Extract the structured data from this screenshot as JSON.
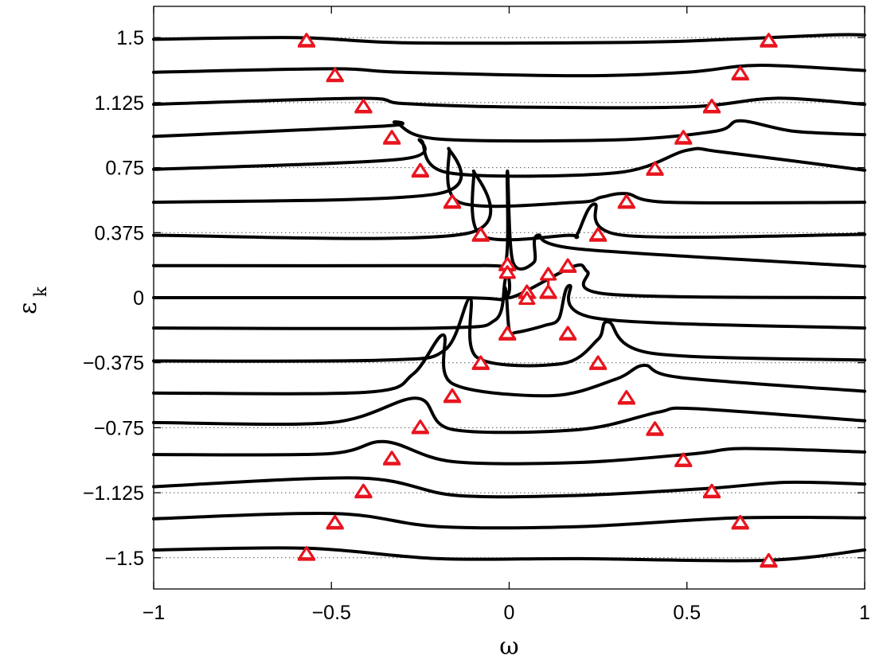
{
  "chart_data": {
    "type": "line",
    "title": "",
    "xlabel": "ω",
    "ylabel": "ε",
    "ylabel_subscript": "k",
    "xlim": [
      -1,
      1
    ],
    "ylim": [
      -1.68,
      1.68
    ],
    "xticks": [
      -1,
      -0.5,
      0,
      0.5,
      1
    ],
    "xtick_labels": [
      "−1",
      "−0.5",
      "0",
      "0.5",
      "1"
    ],
    "yticks": [
      -1.5,
      -1.125,
      -0.75,
      -0.375,
      0,
      0.375,
      0.75,
      1.125,
      1.5
    ],
    "ytick_labels": [
      "−1.5",
      "−1.125",
      "−0.75",
      "−0.375",
      "0",
      "0.375",
      "0.75",
      "1.125",
      "1.5"
    ],
    "dotted_gridlines_at_ytick": true,
    "line_color": "#000000",
    "marker_color": "#e8141e",
    "marker_style": "double-triangle-arrow",
    "series": [
      {
        "eps": -1.5,
        "xs": [
          -1,
          -0.57,
          -0.2,
          0.2,
          0.72,
          1
        ],
        "ys": [
          -1.455,
          -1.445,
          -1.505,
          -1.505,
          -1.515,
          -1.455
        ]
      },
      {
        "eps": -1.31,
        "xs": [
          -1,
          -0.49,
          -0.2,
          0.2,
          0.64,
          1
        ],
        "ys": [
          -1.275,
          -1.245,
          -1.32,
          -1.32,
          -1.27,
          -1.27
        ]
      },
      {
        "eps": -1.125,
        "xs": [
          -1,
          -0.42,
          -0.15,
          0.2,
          0.56,
          0.78,
          1
        ],
        "ys": [
          -1.09,
          -1.04,
          -1.14,
          -1.14,
          -1.1,
          -1.065,
          -1.075
        ]
      },
      {
        "eps": -0.94,
        "xs": [
          -1,
          -0.51,
          -0.35,
          -0.16,
          0.2,
          0.52,
          0.66,
          1
        ],
        "ys": [
          -0.905,
          -0.9,
          -0.83,
          -0.945,
          -0.95,
          -0.9,
          -0.87,
          -0.89
        ]
      },
      {
        "eps": -0.75,
        "xs": [
          -1,
          -0.5,
          -0.26,
          -0.16,
          0.2,
          0.42,
          0.52,
          1
        ],
        "ys": [
          -0.72,
          -0.72,
          -0.58,
          -0.76,
          -0.76,
          -0.66,
          -0.64,
          -0.71
        ]
      },
      {
        "eps": -0.56,
        "xs": [
          -1,
          -0.4,
          -0.27,
          -0.185,
          -0.16,
          0.12,
          0.3,
          0.38,
          0.48,
          1
        ],
        "ys": [
          -0.55,
          -0.545,
          -0.44,
          -0.215,
          -0.495,
          -0.565,
          -0.47,
          -0.39,
          -0.46,
          -0.54
        ]
      },
      {
        "eps": -0.375,
        "xs": [
          -1,
          -0.35,
          -0.18,
          -0.11,
          -0.09,
          0.15,
          0.25,
          0.28,
          0.4,
          1
        ],
        "ys": [
          -0.365,
          -0.36,
          -0.3,
          -0.005,
          -0.345,
          -0.38,
          -0.24,
          -0.14,
          -0.32,
          -0.36
        ]
      },
      {
        "eps": -0.19,
        "xs": [
          -1,
          -0.2,
          -0.04,
          -0.012,
          0.0,
          0.02,
          0.1,
          0.14,
          0.17,
          0.25,
          1
        ],
        "ys": [
          -0.175,
          -0.175,
          -0.13,
          0.06,
          -0.185,
          -0.2,
          -0.16,
          -0.12,
          0.07,
          -0.12,
          -0.175
        ]
      },
      {
        "eps": 0.0,
        "xs": [
          -1,
          -0.15,
          -0.01,
          -0.005,
          0.0,
          0.18,
          0.22,
          0.28,
          1
        ],
        "ys": [
          0.0,
          0.0,
          0.0,
          0.165,
          0.0,
          0.18,
          0.15,
          0.02,
          0.0
        ]
      },
      {
        "eps": 0.19,
        "xs": [
          -1,
          -0.08,
          -0.01,
          -0.005,
          0.01,
          0.07,
          0.08,
          0.2,
          1
        ],
        "ys": [
          0.185,
          0.185,
          0.2,
          0.73,
          0.21,
          0.205,
          0.36,
          0.28,
          0.18
        ]
      },
      {
        "eps": 0.375,
        "xs": [
          -1,
          -0.12,
          -0.1,
          -0.08,
          0.17,
          0.19,
          0.24,
          0.32,
          1
        ],
        "ys": [
          0.36,
          0.37,
          0.73,
          0.36,
          0.36,
          0.36,
          0.54,
          0.36,
          0.365
        ]
      },
      {
        "eps": 0.56,
        "xs": [
          -1,
          -0.2,
          -0.17,
          -0.14,
          0.19,
          0.26,
          0.33,
          0.45,
          1
        ],
        "ys": [
          0.55,
          0.6,
          0.86,
          0.55,
          0.55,
          0.58,
          0.6,
          0.55,
          0.55
        ]
      },
      {
        "eps": 0.75,
        "xs": [
          -1,
          -0.3,
          -0.25,
          -0.17,
          0.3,
          0.5,
          0.6,
          1
        ],
        "ys": [
          0.74,
          0.8,
          0.91,
          0.72,
          0.72,
          0.85,
          0.84,
          0.735
        ]
      },
      {
        "eps": 0.94,
        "xs": [
          -1,
          -0.35,
          -0.32,
          -0.2,
          0.3,
          0.58,
          0.65,
          0.8,
          1
        ],
        "ys": [
          0.93,
          0.99,
          1.01,
          0.915,
          0.91,
          0.96,
          1.02,
          0.96,
          0.94
        ]
      },
      {
        "eps": 1.125,
        "xs": [
          -1,
          -0.42,
          -0.3,
          0.0,
          0.5,
          0.75,
          1
        ],
        "ys": [
          1.115,
          1.15,
          1.12,
          1.1,
          1.1,
          1.15,
          1.115
        ]
      },
      {
        "eps": 1.31,
        "xs": [
          -1,
          -0.5,
          -0.3,
          0.2,
          0.5,
          0.7,
          1
        ],
        "ys": [
          1.3,
          1.32,
          1.3,
          1.28,
          1.3,
          1.34,
          1.31
        ]
      },
      {
        "eps": 1.5,
        "xs": [
          -1,
          -0.6,
          -0.3,
          0.2,
          0.5,
          0.9,
          1
        ],
        "ys": [
          1.49,
          1.5,
          1.47,
          1.47,
          1.48,
          1.515,
          1.515
        ]
      }
    ],
    "markers": [
      {
        "x": -0.57,
        "y": -1.51,
        "len": 0.07
      },
      {
        "x": 0.73,
        "y": -1.55,
        "len": 0.07
      },
      {
        "x": -0.49,
        "y": -1.33,
        "len": 0.07
      },
      {
        "x": 0.65,
        "y": -1.33,
        "len": 0.07
      },
      {
        "x": -0.41,
        "y": -1.15,
        "len": 0.07
      },
      {
        "x": 0.57,
        "y": -1.15,
        "len": 0.07
      },
      {
        "x": -0.33,
        "y": -0.96,
        "len": 0.07
      },
      {
        "x": 0.49,
        "y": -0.97,
        "len": 0.07
      },
      {
        "x": -0.25,
        "y": -0.78,
        "len": 0.07
      },
      {
        "x": 0.41,
        "y": -0.79,
        "len": 0.07
      },
      {
        "x": -0.16,
        "y": -0.6,
        "len": 0.07
      },
      {
        "x": 0.33,
        "y": -0.61,
        "len": 0.07
      },
      {
        "x": -0.08,
        "y": -0.41,
        "len": 0.07
      },
      {
        "x": 0.25,
        "y": -0.41,
        "len": 0.07
      },
      {
        "x": -0.005,
        "y": -0.24,
        "len": 0.07
      },
      {
        "x": 0.165,
        "y": -0.24,
        "len": 0.07
      },
      {
        "x": 0.05,
        "y": 0.0,
        "len": 0.03
      },
      {
        "x": 0.11,
        "y": 0.0,
        "len": 0.17
      },
      {
        "x": -0.005,
        "y": 0.16,
        "len": 0.02
      },
      {
        "x": 0.165,
        "y": 0.15,
        "len": 0.07
      },
      {
        "x": -0.08,
        "y": 0.33,
        "len": 0.07
      },
      {
        "x": 0.25,
        "y": 0.33,
        "len": 0.07
      },
      {
        "x": -0.16,
        "y": 0.52,
        "len": 0.07
      },
      {
        "x": 0.33,
        "y": 0.52,
        "len": 0.07
      },
      {
        "x": -0.25,
        "y": 0.7,
        "len": 0.07
      },
      {
        "x": 0.41,
        "y": 0.71,
        "len": 0.07
      },
      {
        "x": -0.33,
        "y": 0.89,
        "len": 0.07
      },
      {
        "x": 0.49,
        "y": 0.89,
        "len": 0.07
      },
      {
        "x": -0.41,
        "y": 1.07,
        "len": 0.07
      },
      {
        "x": 0.57,
        "y": 1.07,
        "len": 0.07
      },
      {
        "x": -0.49,
        "y": 1.25,
        "len": 0.07
      },
      {
        "x": 0.65,
        "y": 1.26,
        "len": 0.07
      },
      {
        "x": -0.57,
        "y": 1.45,
        "len": 0.07
      },
      {
        "x": 0.73,
        "y": 1.45,
        "len": 0.07
      }
    ]
  }
}
